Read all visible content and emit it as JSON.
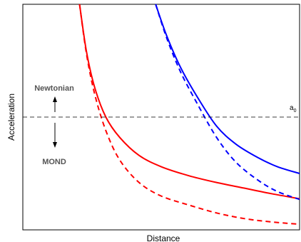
{
  "chart_data": {
    "type": "line",
    "title": "",
    "xlabel": "Distance",
    "ylabel": "Acceleration",
    "grid": false,
    "legend": "none",
    "x_ticks": "none",
    "y_ticks": "none",
    "xlim": [
      0,
      10
    ],
    "ylim": [
      0,
      10
    ],
    "threshold": {
      "label_base": "a",
      "label_sub": "0",
      "value": 5.0,
      "style": "dashed",
      "color": "#000000"
    },
    "annotations": [
      {
        "text": "Newtonian",
        "arrow": "up"
      },
      {
        "text": "MOND",
        "arrow": "down"
      }
    ],
    "series": [
      {
        "color": "#ff0000",
        "style": "solid",
        "x": [
          2.05,
          2.3,
          2.6,
          3.0,
          3.5,
          4.2,
          5.0,
          6.0,
          7.0,
          8.0,
          9.0,
          10.0
        ],
        "y": [
          10.0,
          7.9,
          6.3,
          5.0,
          4.1,
          3.3,
          2.8,
          2.4,
          2.1,
          1.85,
          1.6,
          1.38
        ]
      },
      {
        "color": "#ff0000",
        "style": "dashed",
        "x": [
          2.05,
          2.3,
          2.6,
          3.0,
          3.5,
          4.2,
          5.0,
          6.0,
          7.0,
          8.0,
          9.0,
          10.0
        ],
        "y": [
          10.0,
          7.8,
          6.0,
          4.4,
          3.1,
          2.1,
          1.5,
          1.1,
          0.75,
          0.5,
          0.35,
          0.25
        ]
      },
      {
        "color": "#0000ff",
        "style": "solid",
        "x": [
          4.8,
          5.2,
          5.7,
          6.3,
          7.0,
          7.7,
          8.5,
          9.2,
          10.0
        ],
        "y": [
          10.0,
          8.6,
          7.2,
          5.9,
          4.6,
          3.8,
          3.2,
          2.8,
          2.5
        ]
      },
      {
        "color": "#0000ff",
        "style": "dashed",
        "x": [
          4.8,
          5.2,
          5.7,
          6.3,
          7.0,
          7.7,
          8.5,
          9.2,
          10.0
        ],
        "y": [
          10.0,
          8.5,
          7.0,
          5.6,
          4.1,
          3.0,
          2.2,
          1.7,
          1.35
        ]
      }
    ]
  }
}
